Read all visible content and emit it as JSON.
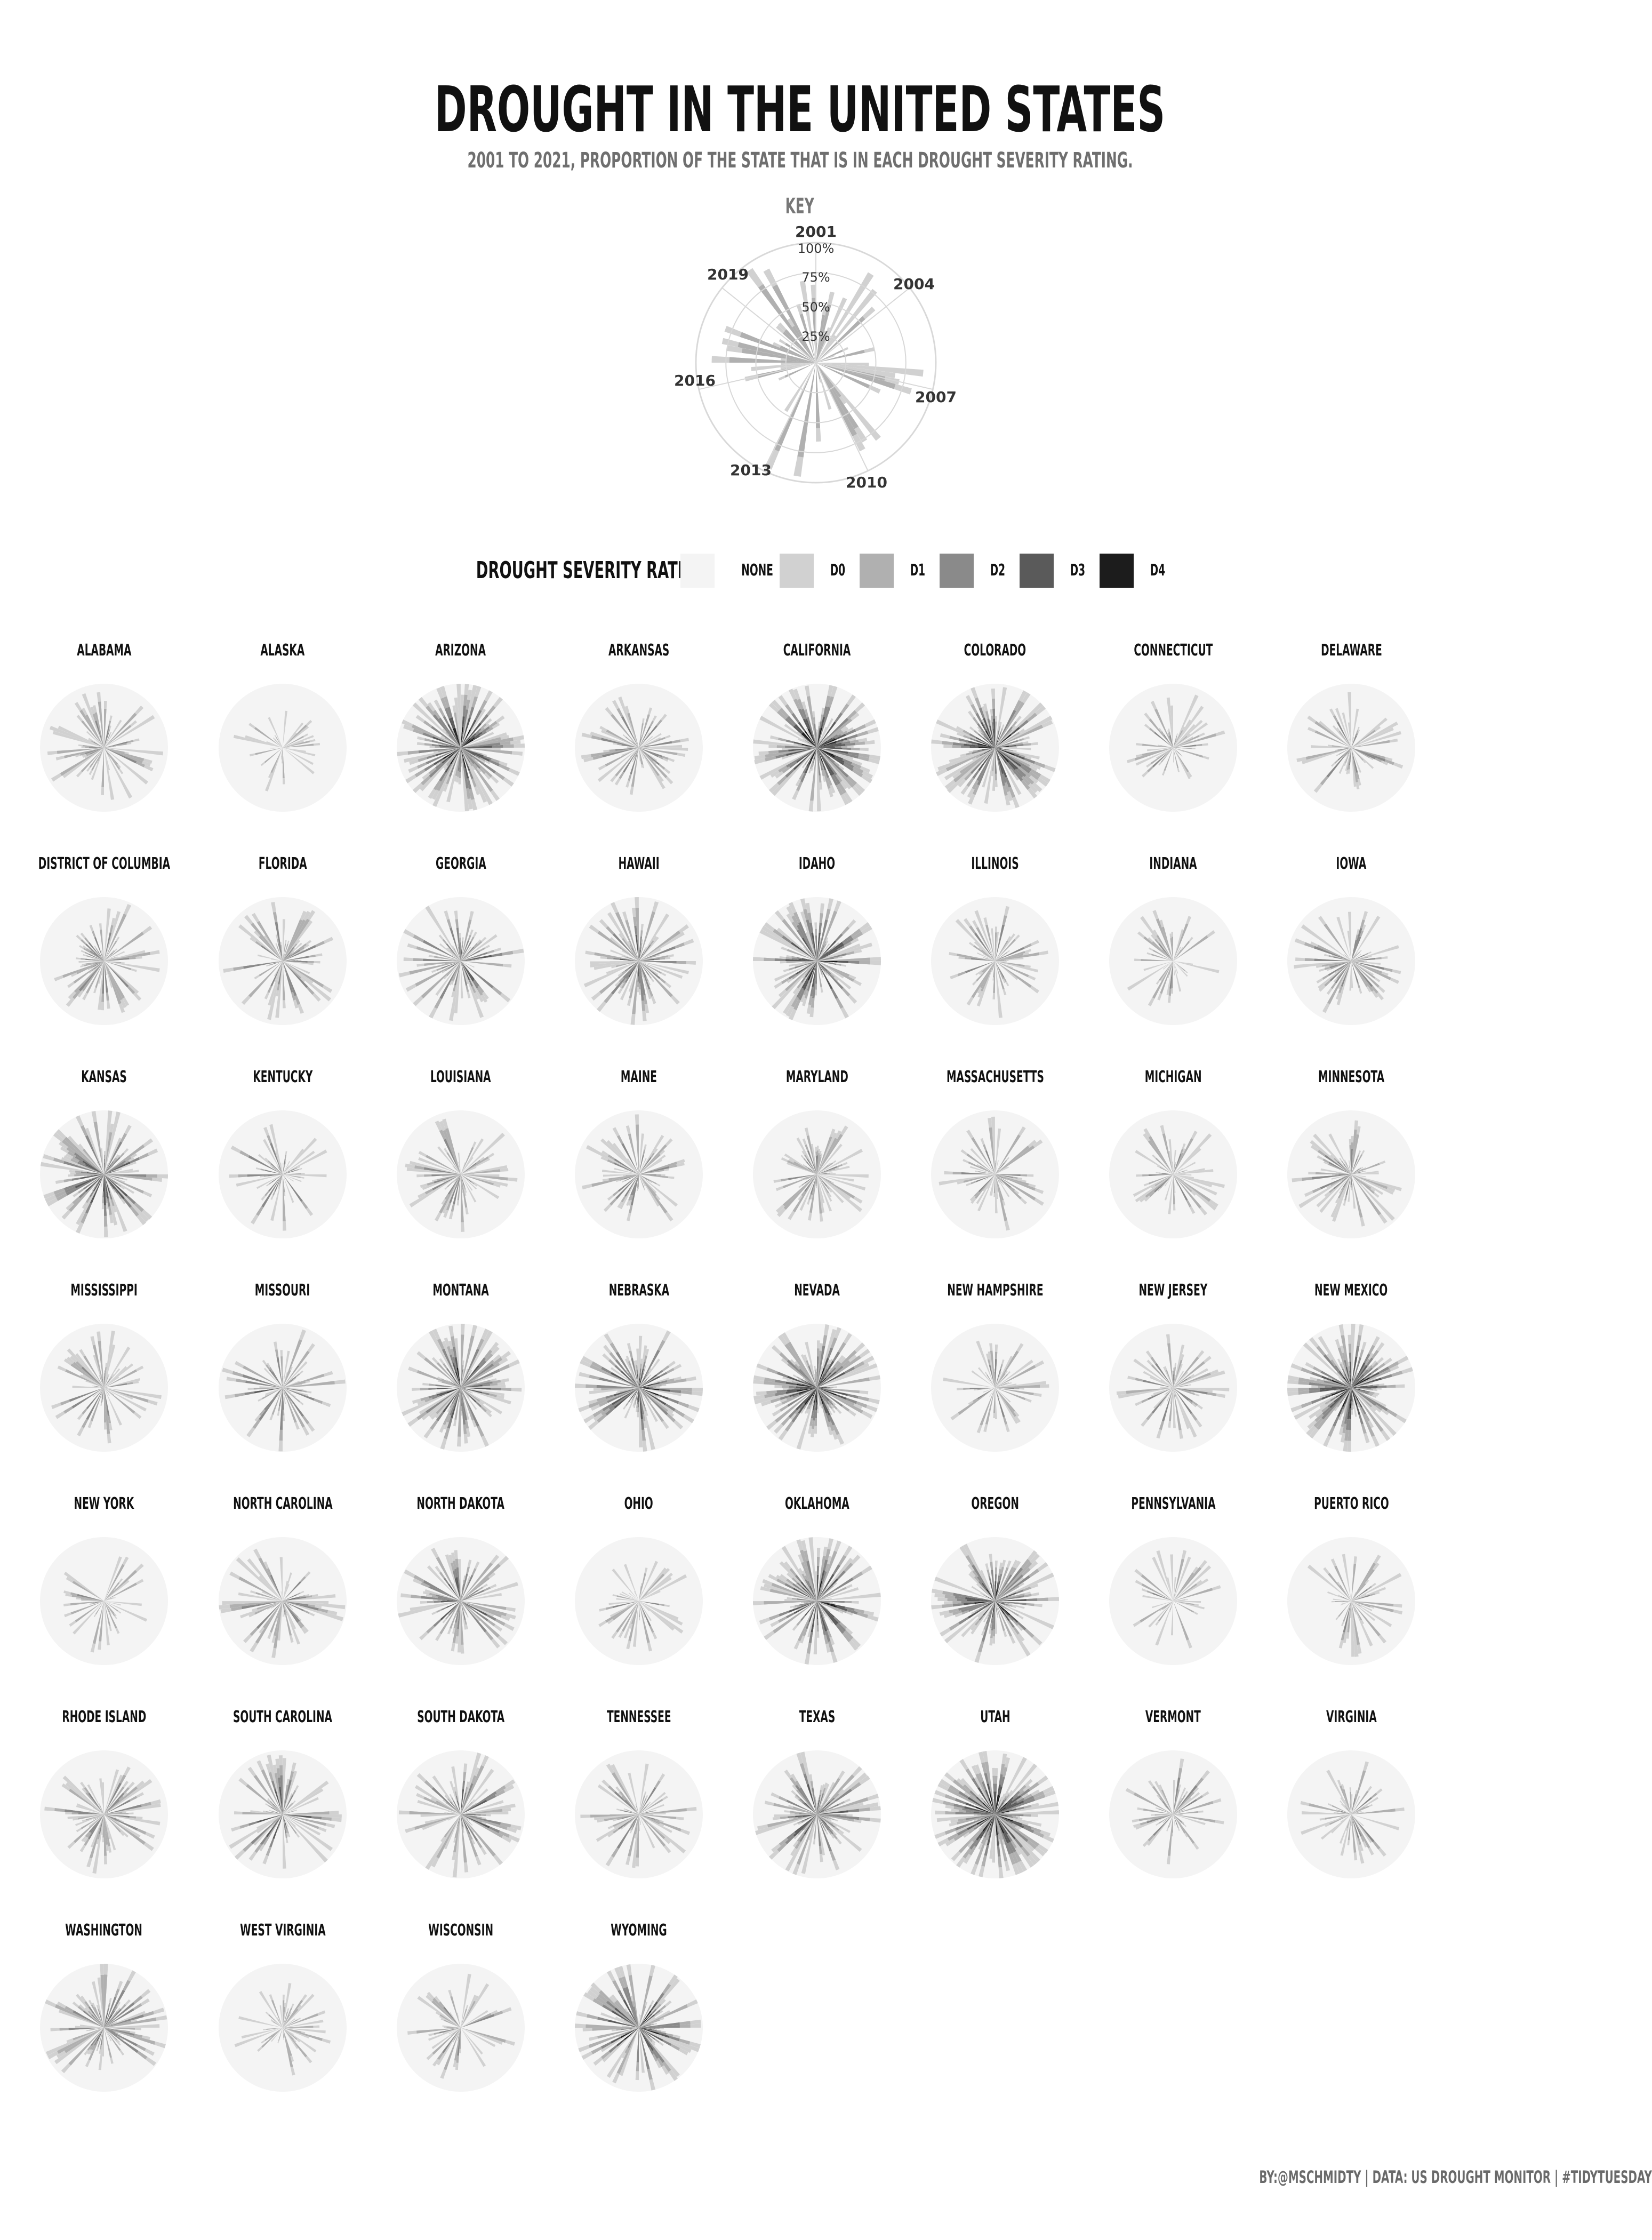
{
  "title": "DROUGHT IN THE UNITED STATES",
  "subtitle": "2001 TO 2021, PROPORTION OF THE STATE THAT IS IN EACH DROUGHT SEVERITY RATING.",
  "key": {
    "label": "KEY",
    "year_labels": [
      "2001",
      "2004",
      "2007",
      "2010",
      "2013",
      "2016",
      "2019"
    ],
    "percent_labels": [
      "25%",
      "50%",
      "75%",
      "100%"
    ]
  },
  "legend": {
    "title": "DROUGHT SEVERITY RATING",
    "items": [
      {
        "label": "NONE",
        "color": "#f4f4f4"
      },
      {
        "label": "D0",
        "color": "#d1d1d1"
      },
      {
        "label": "D1",
        "color": "#b0b0b0"
      },
      {
        "label": "D2",
        "color": "#8a8a8a"
      },
      {
        "label": "D3",
        "color": "#5a5a5a"
      },
      {
        "label": "D4",
        "color": "#1c1c1c"
      }
    ]
  },
  "credits": "BY:@MSCHMIDTY  |  DATA: US DROUGHT MONITOR  |  #TIDYTUESDAY",
  "chart_data": {
    "type": "radial-bar",
    "x_range": [
      2001,
      2021
    ],
    "ylim": [
      0,
      1
    ],
    "series_colors": {
      "none": "#f4f4f4",
      "D0": "#d1d1d1",
      "D1": "#b0b0b0",
      "D2": "#8a8a8a",
      "D3": "#5a5a5a",
      "D4": "#1c1c1c"
    },
    "panels": [
      {
        "state": "ALABAMA",
        "intensity": 0.45
      },
      {
        "state": "ALASKA",
        "intensity": 0.15
      },
      {
        "state": "ARIZONA",
        "intensity": 0.95
      },
      {
        "state": "ARKANSAS",
        "intensity": 0.4
      },
      {
        "state": "CALIFORNIA",
        "intensity": 0.9
      },
      {
        "state": "COLORADO",
        "intensity": 0.85
      },
      {
        "state": "CONNECTICUT",
        "intensity": 0.35
      },
      {
        "state": "DELAWARE",
        "intensity": 0.35
      },
      {
        "state": "DISTRICT OF COLUMBIA",
        "intensity": 0.45
      },
      {
        "state": "FLORIDA",
        "intensity": 0.45
      },
      {
        "state": "GEORGIA",
        "intensity": 0.6
      },
      {
        "state": "HAWAII",
        "intensity": 0.6
      },
      {
        "state": "IDAHO",
        "intensity": 0.75
      },
      {
        "state": "ILLINOIS",
        "intensity": 0.35
      },
      {
        "state": "INDIANA",
        "intensity": 0.25
      },
      {
        "state": "IOWA",
        "intensity": 0.45
      },
      {
        "state": "KANSAS",
        "intensity": 0.7
      },
      {
        "state": "KENTUCKY",
        "intensity": 0.35
      },
      {
        "state": "LOUISIANA",
        "intensity": 0.4
      },
      {
        "state": "MAINE",
        "intensity": 0.4
      },
      {
        "state": "MARYLAND",
        "intensity": 0.4
      },
      {
        "state": "MASSACHUSETTS",
        "intensity": 0.35
      },
      {
        "state": "MICHIGAN",
        "intensity": 0.3
      },
      {
        "state": "MINNESOTA",
        "intensity": 0.45
      },
      {
        "state": "MISSISSIPPI",
        "intensity": 0.35
      },
      {
        "state": "MISSOURI",
        "intensity": 0.5
      },
      {
        "state": "MONTANA",
        "intensity": 0.75
      },
      {
        "state": "NEBRASKA",
        "intensity": 0.75
      },
      {
        "state": "NEVADA",
        "intensity": 0.95
      },
      {
        "state": "NEW HAMPSHIRE",
        "intensity": 0.35
      },
      {
        "state": "NEW JERSEY",
        "intensity": 0.35
      },
      {
        "state": "NEW MEXICO",
        "intensity": 0.95
      },
      {
        "state": "NEW YORK",
        "intensity": 0.25
      },
      {
        "state": "NORTH CAROLINA",
        "intensity": 0.5
      },
      {
        "state": "NORTH DAKOTA",
        "intensity": 0.6
      },
      {
        "state": "OHIO",
        "intensity": 0.25
      },
      {
        "state": "OKLAHOMA",
        "intensity": 0.75
      },
      {
        "state": "OREGON",
        "intensity": 0.85
      },
      {
        "state": "PENNSYLVANIA",
        "intensity": 0.25
      },
      {
        "state": "PUERTO RICO",
        "intensity": 0.3
      },
      {
        "state": "RHODE ISLAND",
        "intensity": 0.45
      },
      {
        "state": "SOUTH CAROLINA",
        "intensity": 0.55
      },
      {
        "state": "SOUTH DAKOTA",
        "intensity": 0.6
      },
      {
        "state": "TENNESSEE",
        "intensity": 0.4
      },
      {
        "state": "TEXAS",
        "intensity": 0.7
      },
      {
        "state": "UTAH",
        "intensity": 0.95
      },
      {
        "state": "VERMONT",
        "intensity": 0.35
      },
      {
        "state": "VIRGINIA",
        "intensity": 0.35
      },
      {
        "state": "WASHINGTON",
        "intensity": 0.55
      },
      {
        "state": "WEST VIRGINIA",
        "intensity": 0.25
      },
      {
        "state": "WISCONSIN",
        "intensity": 0.3
      },
      {
        "state": "WYOMING",
        "intensity": 0.85
      }
    ]
  }
}
